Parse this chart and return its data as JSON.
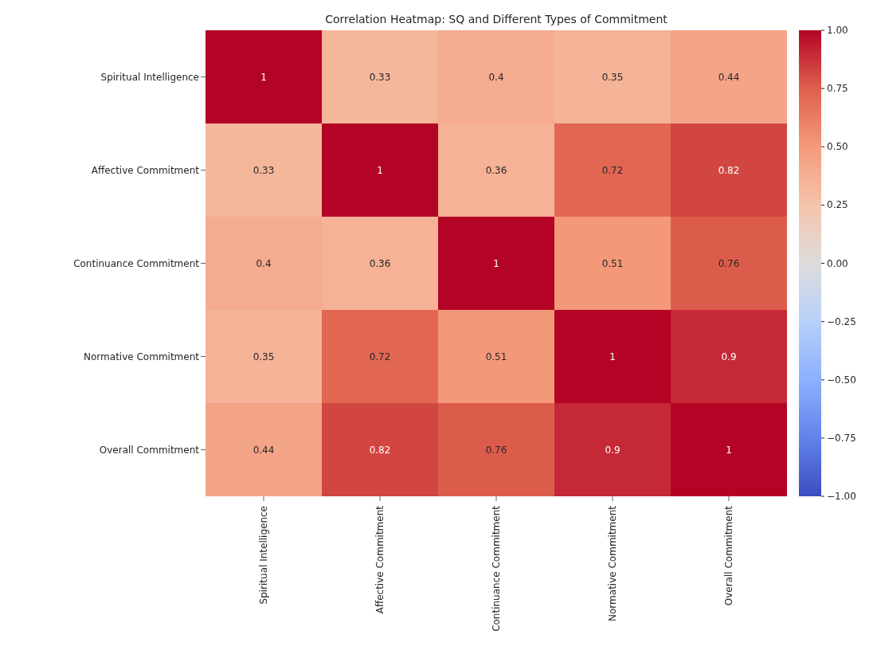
{
  "chart_data": {
    "type": "heatmap",
    "title": "Correlation Heatmap: SQ and Different Types of Commitment",
    "categories": [
      "Spiritual Intelligence",
      "Affective Commitment",
      "Continuance Commitment",
      "Normative Commitment",
      "Overall Commitment"
    ],
    "y_categories": [
      "Spiritual Intelligence",
      "Affective Commitment",
      "Continuance Commitment",
      "Normative Commitment",
      "Overall Commitment"
    ],
    "cells": [
      [
        1,
        0.33,
        0.4,
        0.35,
        0.44
      ],
      [
        0.33,
        1,
        0.36,
        0.72,
        0.82
      ],
      [
        0.4,
        0.36,
        1,
        0.51,
        0.76
      ],
      [
        0.35,
        0.72,
        0.51,
        1,
        0.9
      ],
      [
        0.44,
        0.82,
        0.76,
        0.9,
        1
      ]
    ],
    "data_labels": true,
    "clim": [
      -1,
      1
    ],
    "cticks": [
      {
        "value": 1,
        "label": "1.00"
      },
      {
        "value": 0.75,
        "label": "0.75"
      },
      {
        "value": 0.5,
        "label": "0.50"
      },
      {
        "value": 0.25,
        "label": "0.25"
      },
      {
        "value": 0,
        "label": "0.00"
      },
      {
        "value": -0.25,
        "label": "−0.25"
      },
      {
        "value": -0.5,
        "label": "−0.50"
      },
      {
        "value": -0.75,
        "label": "−0.75"
      },
      {
        "value": -1,
        "label": "−1.00"
      }
    ]
  }
}
